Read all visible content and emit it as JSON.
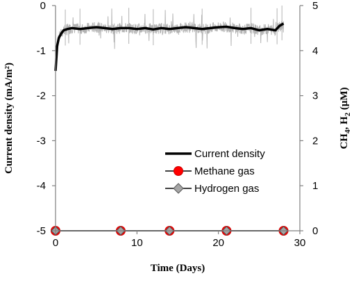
{
  "chart_data": {
    "type": "line",
    "xlabel": "Time (Days)",
    "ylabel_left": "Current density (mA/m²)",
    "ylabel_right_parts": [
      "CH",
      "4",
      ", H",
      "2",
      " (μM)"
    ],
    "xlim": [
      0,
      30
    ],
    "ylim_left": [
      -5,
      0
    ],
    "ylim_right": [
      0,
      5
    ],
    "x_ticks": [
      0,
      10,
      20,
      30
    ],
    "y_ticks_left": [
      0,
      -1,
      -2,
      -3,
      -4,
      -5
    ],
    "y_ticks_right": [
      5,
      4,
      3,
      2,
      1,
      0
    ],
    "legend_position": "bottom-right",
    "grid": false,
    "series": [
      {
        "name": "Current density",
        "axis": "left",
        "color": "#000000",
        "x": [
          0,
          0.2,
          0.4,
          0.7,
          1.0,
          1.5,
          2,
          3,
          4,
          5,
          6,
          7,
          8,
          9,
          10,
          11,
          12,
          13,
          14,
          15,
          16,
          17,
          18,
          19,
          20,
          21,
          22,
          23,
          24,
          25,
          26,
          27,
          27.5,
          28
        ],
        "y": [
          -1.45,
          -0.9,
          -0.72,
          -0.62,
          -0.55,
          -0.52,
          -0.5,
          -0.52,
          -0.5,
          -0.48,
          -0.5,
          -0.52,
          -0.5,
          -0.5,
          -0.52,
          -0.5,
          -0.53,
          -0.5,
          -0.52,
          -0.5,
          -0.48,
          -0.5,
          -0.52,
          -0.5,
          -0.48,
          -0.47,
          -0.5,
          -0.52,
          -0.5,
          -0.55,
          -0.52,
          -0.55,
          -0.45,
          -0.4
        ]
      },
      {
        "name": "Methane gas",
        "axis": "right",
        "marker": "circle",
        "color": "#ff0000",
        "x": [
          0,
          8,
          14,
          21,
          28
        ],
        "y": [
          0,
          0,
          0,
          0,
          0
        ]
      },
      {
        "name": "Hydrogen gas",
        "axis": "right",
        "marker": "diamond",
        "color": "#a6a6a6",
        "x": [
          0,
          8,
          14,
          21,
          28
        ],
        "y": [
          0,
          0,
          0,
          0,
          0
        ]
      }
    ]
  }
}
